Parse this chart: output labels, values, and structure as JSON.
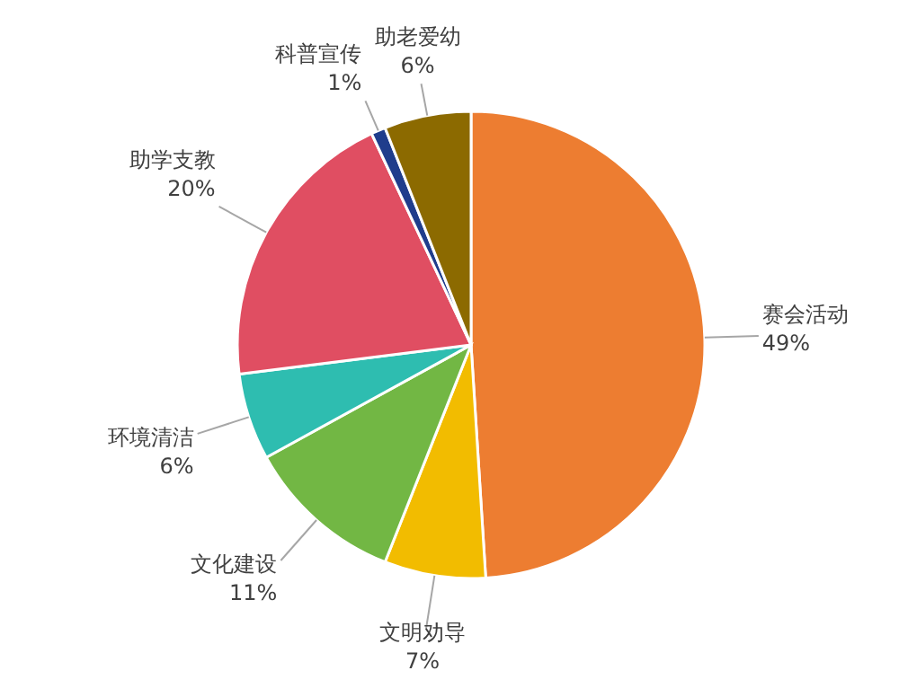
{
  "chart_data": {
    "type": "pie",
    "categories": [
      "赛会活动",
      "文明劝导",
      "文化建设",
      "环境清洁",
      "助学支教",
      "科普宣传",
      "助老爱幼"
    ],
    "values": [
      49,
      7,
      11,
      6,
      20,
      1,
      6
    ],
    "value_labels": [
      "49%",
      "7%",
      "11%",
      "6%",
      "20%",
      "1%",
      "6%"
    ],
    "colors": [
      "#ed7d31",
      "#f2bc00",
      "#72b744",
      "#2ebdb0",
      "#e04e62",
      "#1f3d8c",
      "#8c6a00"
    ]
  }
}
